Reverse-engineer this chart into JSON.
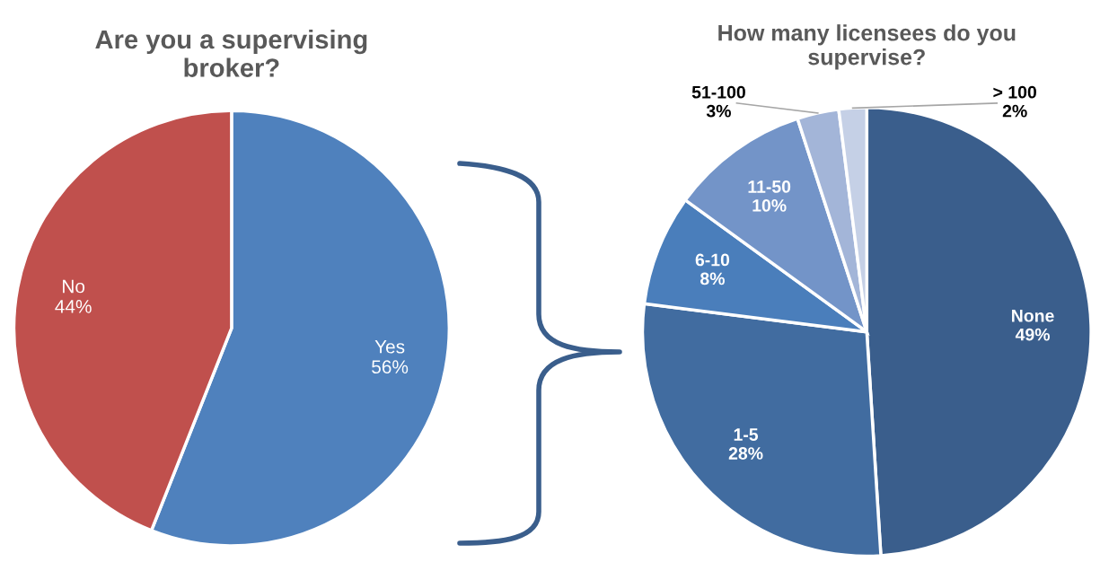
{
  "chart_data": [
    {
      "type": "pie",
      "title": "Are you a supervising\nbroker?",
      "categories": [
        "Yes",
        "No"
      ],
      "values": [
        56,
        44
      ],
      "colors": [
        "#4f81bd",
        "#c0504d"
      ],
      "value_labels": [
        "56%",
        "44%"
      ]
    },
    {
      "type": "pie",
      "title": "How many licensees do you\nsupervise?",
      "categories": [
        "None",
        "1-5",
        "6-10",
        "11-50",
        "51-100",
        "> 100"
      ],
      "values": [
        49,
        28,
        8,
        10,
        3,
        2
      ],
      "colors": [
        "#3a5e8c",
        "#416ca0",
        "#4a7ebb",
        "#7394c8",
        "#a3b5d8",
        "#c5d0e6"
      ],
      "value_labels": [
        "49%",
        "28%",
        "8%",
        "10%",
        "3%",
        "2%"
      ]
    }
  ]
}
